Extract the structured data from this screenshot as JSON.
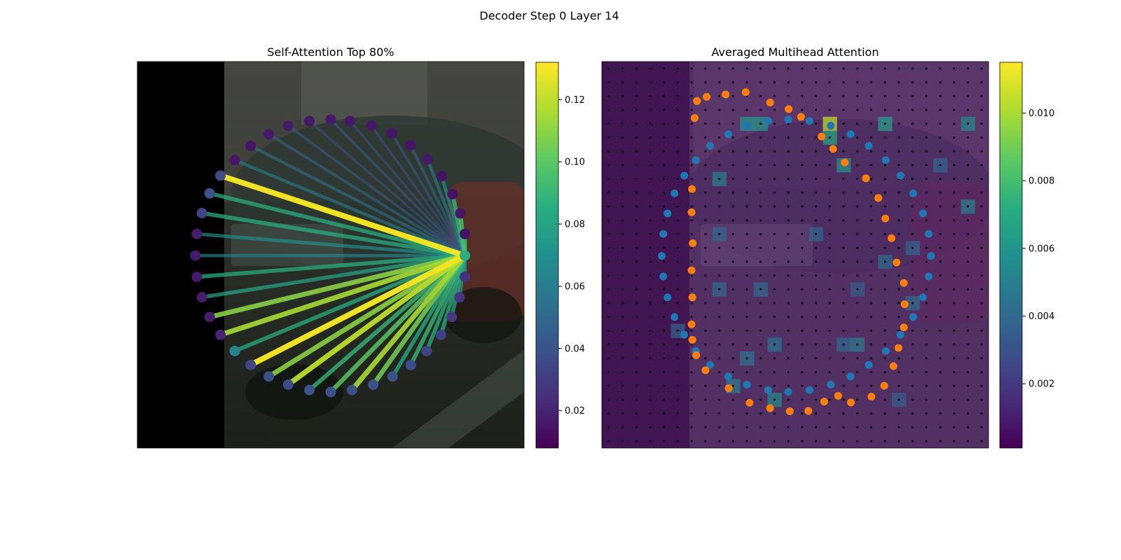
{
  "figure": {
    "title": "Decoder Step 0 Layer 14"
  },
  "chart_data": [
    {
      "type": "line",
      "title": "Self-Attention Top 80%",
      "xlabel": "",
      "ylabel": "",
      "grid": false,
      "legend": "none",
      "background": "dark street photo with a car; left ~22% of frame black",
      "source_point": {
        "x": 0.847,
        "y": 0.502,
        "value": 0.085
      },
      "points": [
        {
          "x": 0.847,
          "y": 0.446,
          "value": 0.014
        },
        {
          "x": 0.835,
          "y": 0.393,
          "value": 0.015
        },
        {
          "x": 0.815,
          "y": 0.343,
          "value": 0.014
        },
        {
          "x": 0.787,
          "y": 0.296,
          "value": 0.014
        },
        {
          "x": 0.75,
          "y": 0.253,
          "value": 0.016
        },
        {
          "x": 0.706,
          "y": 0.216,
          "value": 0.015
        },
        {
          "x": 0.658,
          "y": 0.186,
          "value": 0.015
        },
        {
          "x": 0.605,
          "y": 0.166,
          "value": 0.016
        },
        {
          "x": 0.55,
          "y": 0.154,
          "value": 0.016
        },
        {
          "x": 0.5,
          "y": 0.15,
          "value": 0.017
        },
        {
          "x": 0.445,
          "y": 0.154,
          "value": 0.016
        },
        {
          "x": 0.39,
          "y": 0.166,
          "value": 0.017
        },
        {
          "x": 0.34,
          "y": 0.188,
          "value": 0.016
        },
        {
          "x": 0.293,
          "y": 0.218,
          "value": 0.015
        },
        {
          "x": 0.252,
          "y": 0.255,
          "value": 0.015
        },
        {
          "x": 0.215,
          "y": 0.295,
          "value": 0.036
        },
        {
          "x": 0.187,
          "y": 0.341,
          "value": 0.04
        },
        {
          "x": 0.167,
          "y": 0.392,
          "value": 0.033
        },
        {
          "x": 0.154,
          "y": 0.446,
          "value": 0.018
        },
        {
          "x": 0.15,
          "y": 0.502,
          "value": 0.016
        },
        {
          "x": 0.154,
          "y": 0.557,
          "value": 0.016
        },
        {
          "x": 0.167,
          "y": 0.61,
          "value": 0.018
        },
        {
          "x": 0.187,
          "y": 0.661,
          "value": 0.018
        },
        {
          "x": 0.215,
          "y": 0.707,
          "value": 0.021
        },
        {
          "x": 0.252,
          "y": 0.749,
          "value": 0.063
        },
        {
          "x": 0.293,
          "y": 0.785,
          "value": 0.033
        },
        {
          "x": 0.34,
          "y": 0.815,
          "value": 0.038
        },
        {
          "x": 0.39,
          "y": 0.836,
          "value": 0.036
        },
        {
          "x": 0.445,
          "y": 0.85,
          "value": 0.039
        },
        {
          "x": 0.5,
          "y": 0.855,
          "value": 0.038
        },
        {
          "x": 0.555,
          "y": 0.85,
          "value": 0.038
        },
        {
          "x": 0.61,
          "y": 0.836,
          "value": 0.04
        },
        {
          "x": 0.66,
          "y": 0.815,
          "value": 0.038
        },
        {
          "x": 0.707,
          "y": 0.785,
          "value": 0.037
        },
        {
          "x": 0.748,
          "y": 0.749,
          "value": 0.033
        },
        {
          "x": 0.785,
          "y": 0.707,
          "value": 0.032
        },
        {
          "x": 0.813,
          "y": 0.661,
          "value": 0.028
        },
        {
          "x": 0.833,
          "y": 0.61,
          "value": 0.027
        },
        {
          "x": 0.847,
          "y": 0.557,
          "value": 0.026
        }
      ],
      "edges": [
        {
          "to": 0,
          "weight": 0.09
        },
        {
          "to": 1,
          "weight": 0.095
        },
        {
          "to": 2,
          "weight": 0.09
        },
        {
          "to": 3,
          "weight": 0.07
        },
        {
          "to": 4,
          "weight": 0.06
        },
        {
          "to": 5,
          "weight": 0.05
        },
        {
          "to": 6,
          "weight": 0.045
        },
        {
          "to": 7,
          "weight": 0.04
        },
        {
          "to": 8,
          "weight": 0.04
        },
        {
          "to": 9,
          "weight": 0.045
        },
        {
          "to": 10,
          "weight": 0.04
        },
        {
          "to": 11,
          "weight": 0.045
        },
        {
          "to": 12,
          "weight": 0.05
        },
        {
          "to": 13,
          "weight": 0.055
        },
        {
          "to": 14,
          "weight": 0.06
        },
        {
          "to": 15,
          "weight": 0.13
        },
        {
          "to": 16,
          "weight": 0.085
        },
        {
          "to": 17,
          "weight": 0.085
        },
        {
          "to": 18,
          "weight": 0.07
        },
        {
          "to": 19,
          "weight": 0.065
        },
        {
          "to": 20,
          "weight": 0.085
        },
        {
          "to": 21,
          "weight": 0.08
        },
        {
          "to": 22,
          "weight": 0.11
        },
        {
          "to": 23,
          "weight": 0.115
        },
        {
          "to": 24,
          "weight": 0.085
        },
        {
          "to": 25,
          "weight": 0.13
        },
        {
          "to": 26,
          "weight": 0.11
        },
        {
          "to": 27,
          "weight": 0.12
        },
        {
          "to": 28,
          "weight": 0.09
        },
        {
          "to": 29,
          "weight": 0.1
        },
        {
          "to": 30,
          "weight": 0.115
        },
        {
          "to": 31,
          "weight": 0.105
        },
        {
          "to": 32,
          "weight": 0.085
        },
        {
          "to": 33,
          "weight": 0.09
        },
        {
          "to": 34,
          "weight": 0.085
        },
        {
          "to": 35,
          "weight": 0.085
        },
        {
          "to": 36,
          "weight": 0.08
        },
        {
          "to": 37,
          "weight": 0.075
        },
        {
          "to": 38,
          "weight": 0.075
        }
      ],
      "colorbar": {
        "min": 0.008,
        "max": 0.132,
        "ticks": [
          0.02,
          0.04,
          0.06,
          0.08,
          0.1,
          0.12
        ],
        "tick_labels": [
          "0.02",
          "0.04",
          "0.06",
          "0.08",
          "0.10",
          "0.12"
        ],
        "colormap": "viridis"
      }
    },
    {
      "type": "heatmap",
      "title": "Averaged Multihead Attention",
      "xlabel": "",
      "ylabel": "",
      "grid": false,
      "legend": "none",
      "grid_size": [
        28,
        28
      ],
      "background": "same street photo, darkened under heatmap overlay",
      "hot_cells": [
        {
          "x": 0.58,
          "y": 0.15,
          "value": 0.0105
        },
        {
          "x": 0.6,
          "y": 0.19,
          "value": 0.007
        },
        {
          "x": 0.64,
          "y": 0.25,
          "value": 0.006
        },
        {
          "x": 0.74,
          "y": 0.15,
          "value": 0.0065
        },
        {
          "x": 0.94,
          "y": 0.15,
          "value": 0.0055
        },
        {
          "x": 0.96,
          "y": 0.37,
          "value": 0.005
        },
        {
          "x": 0.36,
          "y": 0.15,
          "value": 0.006
        },
        {
          "x": 0.4,
          "y": 0.15,
          "value": 0.006
        },
        {
          "x": 0.32,
          "y": 0.3,
          "value": 0.005
        },
        {
          "x": 0.35,
          "y": 0.85,
          "value": 0.0048
        },
        {
          "x": 0.37,
          "y": 0.77,
          "value": 0.0045
        },
        {
          "x": 0.44,
          "y": 0.74,
          "value": 0.0045
        },
        {
          "x": 0.41,
          "y": 0.6,
          "value": 0.004
        },
        {
          "x": 0.3,
          "y": 0.58,
          "value": 0.004
        },
        {
          "x": 0.3,
          "y": 0.45,
          "value": 0.0038
        },
        {
          "x": 0.55,
          "y": 0.46,
          "value": 0.0038
        },
        {
          "x": 0.64,
          "y": 0.72,
          "value": 0.004
        },
        {
          "x": 0.67,
          "y": 0.74,
          "value": 0.0048
        },
        {
          "x": 0.8,
          "y": 0.62,
          "value": 0.0042
        },
        {
          "x": 0.73,
          "y": 0.5,
          "value": 0.004
        },
        {
          "x": 0.82,
          "y": 0.48,
          "value": 0.0038
        },
        {
          "x": 0.88,
          "y": 0.28,
          "value": 0.0038
        },
        {
          "x": 0.2,
          "y": 0.7,
          "value": 0.0036
        },
        {
          "x": 0.45,
          "y": 0.87,
          "value": 0.0055
        },
        {
          "x": 0.67,
          "y": 0.6,
          "value": 0.0035
        },
        {
          "x": 0.77,
          "y": 0.88,
          "value": 0.0035
        }
      ],
      "series": [
        {
          "name": "",
          "color": "#1f77b4",
          "points": [
            {
              "x": 0.155,
              "y": 0.503
            },
            {
              "x": 0.159,
              "y": 0.556
            },
            {
              "x": 0.17,
              "y": 0.61
            },
            {
              "x": 0.188,
              "y": 0.661
            },
            {
              "x": 0.213,
              "y": 0.707
            },
            {
              "x": 0.243,
              "y": 0.749
            },
            {
              "x": 0.28,
              "y": 0.785
            },
            {
              "x": 0.327,
              "y": 0.815
            },
            {
              "x": 0.375,
              "y": 0.836
            },
            {
              "x": 0.43,
              "y": 0.85
            },
            {
              "x": 0.482,
              "y": 0.855
            },
            {
              "x": 0.537,
              "y": 0.85
            },
            {
              "x": 0.592,
              "y": 0.836
            },
            {
              "x": 0.643,
              "y": 0.815
            },
            {
              "x": 0.69,
              "y": 0.785
            },
            {
              "x": 0.734,
              "y": 0.749
            },
            {
              "x": 0.772,
              "y": 0.707
            },
            {
              "x": 0.805,
              "y": 0.661
            },
            {
              "x": 0.83,
              "y": 0.61
            },
            {
              "x": 0.845,
              "y": 0.556
            },
            {
              "x": 0.851,
              "y": 0.503
            },
            {
              "x": 0.845,
              "y": 0.446
            },
            {
              "x": 0.83,
              "y": 0.393
            },
            {
              "x": 0.805,
              "y": 0.341
            },
            {
              "x": 0.772,
              "y": 0.295
            },
            {
              "x": 0.734,
              "y": 0.255
            },
            {
              "x": 0.69,
              "y": 0.218
            },
            {
              "x": 0.643,
              "y": 0.188
            },
            {
              "x": 0.592,
              "y": 0.166
            },
            {
              "x": 0.537,
              "y": 0.154
            },
            {
              "x": 0.482,
              "y": 0.15
            },
            {
              "x": 0.43,
              "y": 0.154
            },
            {
              "x": 0.375,
              "y": 0.166
            },
            {
              "x": 0.327,
              "y": 0.188
            },
            {
              "x": 0.28,
              "y": 0.218
            },
            {
              "x": 0.243,
              "y": 0.255
            },
            {
              "x": 0.213,
              "y": 0.295
            },
            {
              "x": 0.188,
              "y": 0.341
            },
            {
              "x": 0.17,
              "y": 0.393
            },
            {
              "x": 0.159,
              "y": 0.446
            }
          ]
        },
        {
          "name": "",
          "color": "#ff7f0e",
          "points": [
            {
              "x": 0.24,
              "y": 0.146
            },
            {
              "x": 0.246,
              "y": 0.102
            },
            {
              "x": 0.271,
              "y": 0.091
            },
            {
              "x": 0.32,
              "y": 0.085
            },
            {
              "x": 0.372,
              "y": 0.079
            },
            {
              "x": 0.435,
              "y": 0.106
            },
            {
              "x": 0.483,
              "y": 0.123
            },
            {
              "x": 0.515,
              "y": 0.143
            },
            {
              "x": 0.568,
              "y": 0.194
            },
            {
              "x": 0.598,
              "y": 0.226
            },
            {
              "x": 0.628,
              "y": 0.261
            },
            {
              "x": 0.683,
              "y": 0.302
            },
            {
              "x": 0.715,
              "y": 0.353
            },
            {
              "x": 0.733,
              "y": 0.406
            },
            {
              "x": 0.749,
              "y": 0.457
            },
            {
              "x": 0.762,
              "y": 0.52
            },
            {
              "x": 0.781,
              "y": 0.573
            },
            {
              "x": 0.783,
              "y": 0.628
            },
            {
              "x": 0.781,
              "y": 0.688
            },
            {
              "x": 0.767,
              "y": 0.741
            },
            {
              "x": 0.754,
              "y": 0.788
            },
            {
              "x": 0.73,
              "y": 0.839
            },
            {
              "x": 0.697,
              "y": 0.867
            },
            {
              "x": 0.644,
              "y": 0.882
            },
            {
              "x": 0.611,
              "y": 0.865
            },
            {
              "x": 0.575,
              "y": 0.88
            },
            {
              "x": 0.534,
              "y": 0.904
            },
            {
              "x": 0.486,
              "y": 0.905
            },
            {
              "x": 0.435,
              "y": 0.897
            },
            {
              "x": 0.382,
              "y": 0.883
            },
            {
              "x": 0.328,
              "y": 0.845
            },
            {
              "x": 0.268,
              "y": 0.799
            },
            {
              "x": 0.244,
              "y": 0.76
            },
            {
              "x": 0.234,
              "y": 0.72
            },
            {
              "x": 0.232,
              "y": 0.68
            },
            {
              "x": 0.234,
              "y": 0.61
            },
            {
              "x": 0.232,
              "y": 0.54
            },
            {
              "x": 0.235,
              "y": 0.47
            },
            {
              "x": 0.232,
              "y": 0.39
            },
            {
              "x": 0.233,
              "y": 0.33
            }
          ]
        }
      ],
      "colorbar": {
        "min": 0.0001,
        "max": 0.0115,
        "ticks": [
          0.002,
          0.004,
          0.006,
          0.008,
          0.01
        ],
        "tick_labels": [
          "0.002",
          "0.004",
          "0.006",
          "0.008",
          "0.010"
        ],
        "colormap": "viridis"
      }
    }
  ]
}
